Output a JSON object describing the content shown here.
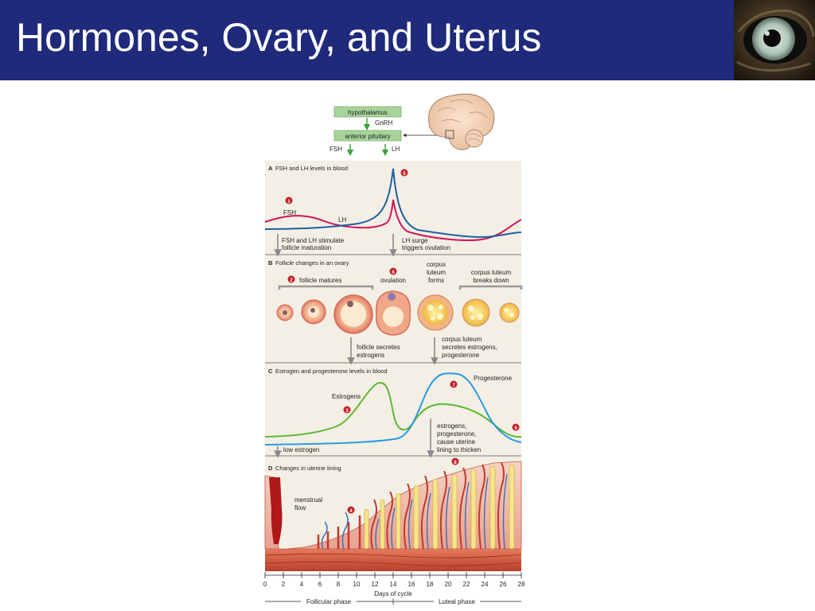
{
  "title": "Hormones, Ovary, and Uterus",
  "hormone_axis": {
    "hypothalamus": "hypothalamus",
    "gnrh": "GnRH",
    "anterior_pituitary": "anterior pituitary",
    "fsh": "FSH",
    "lh": "LH"
  },
  "panel_a": {
    "heading": "A",
    "title": "FSH and LH levels in blood",
    "fsh_label": "FSH",
    "lh_label": "LH",
    "note_left_1": "FSH and LH stimulate",
    "note_left_2": "follicle maturation",
    "note_right_1": "LH surge",
    "note_right_2": "triggers ovulation",
    "badge_1": "1",
    "badge_5": "5"
  },
  "panel_b": {
    "heading": "B",
    "title": "Follicle changes in an ovary",
    "follicle_matures": "follicle matures",
    "ovulation": "ovulation",
    "cl_forms_1": "corpus",
    "cl_forms_2": "luteum",
    "cl_forms_3": "forms",
    "cl_breaks_1": "corpus luteum",
    "cl_breaks_2": "breaks down",
    "note_left_1": "follicle secretes",
    "note_left_2": "estrogens",
    "note_right_1": "corpus luteum",
    "note_right_2": "secretes estrogens,",
    "note_right_3": "progesterone",
    "badge_2": "2",
    "badge_6": "6"
  },
  "panel_c": {
    "heading": "C",
    "title": "Estrogen and progesterone levels in blood",
    "estrogens_label": "Estrogens",
    "progesterone_label": "Progesterone",
    "low_estrogen": "low estrogen",
    "note_1": "estrogens,",
    "note_2": "progesterone,",
    "note_3": "cause uterine",
    "note_4": "lining to thicken",
    "badge_3": "3",
    "badge_7": "7",
    "badge_9": "9"
  },
  "panel_d": {
    "heading": "D",
    "title": "Changes in uterine lining",
    "menstrual_1": "menstrual",
    "menstrual_2": "flow",
    "badge_4": "4",
    "badge_8": "8"
  },
  "axis": {
    "ticks": [
      "0",
      "2",
      "4",
      "6",
      "8",
      "10",
      "12",
      "14",
      "16",
      "18",
      "20",
      "22",
      "24",
      "26",
      "28"
    ],
    "label": "Days of cycle",
    "follicular_phase": "Follicular phase",
    "luteal_phase": "Luteal phase"
  },
  "colors": {
    "title_bar": "#1f2a7a",
    "fsh": "#d0145a",
    "lh": "#1f5fa0",
    "estrogen": "#5cb832",
    "progesterone": "#2a9ae0",
    "badge": "#c41e2a",
    "box_green": "#a8d49a"
  }
}
